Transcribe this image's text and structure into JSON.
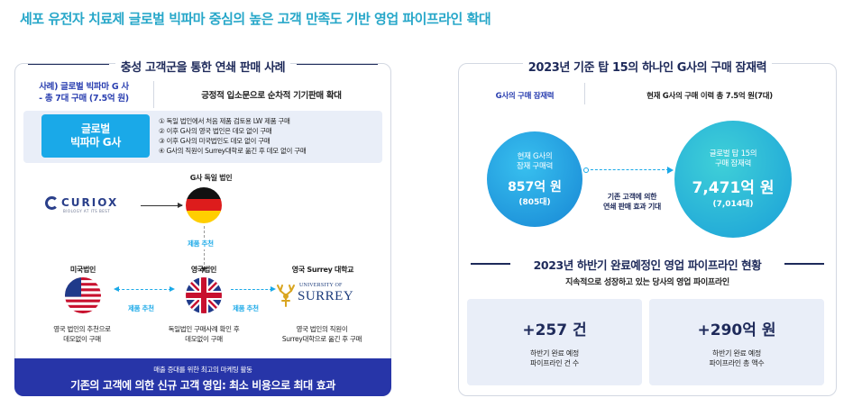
{
  "page_title": "세포 유전자 치료제 글로벌 빅파마 중심의 높은 고객 만족도 기반 영업 파이프라인 확대",
  "left_panel": {
    "heading": "충성 고객군을 통한 연쇄 판매 사례",
    "case_label_line1": "사례) 글로벌 빅파마 G 사",
    "case_label_line2": "- 총 7대 구매 (7.5억 원)",
    "case_desc": "긍정적 입소문으로 순차적 기기판매 확대",
    "badge_line1": "글로벌",
    "badge_line2": "빅파마 G사",
    "case_items": [
      "① 독일 법인에서 처음 제품 검토용 LW 제품 구매",
      "② 이후 G사의 영국 법인은 데모 없이 구매",
      "③ 이후 G사의 미국법인도 데모 없이 구매",
      "④ G사의 직원이 Surrey대학로 옮긴 후 데모 없이 구매"
    ],
    "curiox_name": "CURIOX",
    "curiox_tagline": "BIOLOGY AT ITS BEST",
    "nodes": {
      "germany": "G사 독일 법인",
      "us": "미국법인",
      "uk": "영국법인",
      "surrey": "영국 Surrey 대학교"
    },
    "rec_label": "제품 추천",
    "notes": {
      "us_line1": "영국 법인의 추천으로",
      "us_line2": "데모없이 구매",
      "uk_line1": "독일법인 구매사례 확인 후",
      "uk_line2": "데모없이 구매",
      "surrey_line1": "영국 법인의 직원이",
      "surrey_line2": "Surrey대학으로 옮긴 후 구매"
    },
    "surrey_logo_small": "UNIVERSITY OF",
    "surrey_logo_big": "SURREY",
    "footer_sub": "매출 증대를 위한 최고의 마케팅 활동",
    "footer_main": "기존의 고객에 의한 신규 고객 영입: 최소 비용으로 최대 효과"
  },
  "right_panel": {
    "heading": "2023년 기준 탑 15의 하나인 G사의 구매 잠재력",
    "col_left": "G사의 구매 잠재력",
    "col_right": "현재 G사의 구매 이력 총 7.5억 원(7대)",
    "small_circle": {
      "line1": "현재 G사의",
      "line2": "잠재 구매력",
      "value": "857억 원",
      "sub": "(805대)"
    },
    "big_circle": {
      "line1": "글로벌 탑 15의",
      "line2": "구매 잠재력",
      "value": "7,471억 원",
      "sub": "(7,014대)"
    },
    "arrow_line1": "기존 고객에 의한",
    "arrow_line2": "연쇄 판매 효과 기대",
    "heading2": "2023년 하반기 완료예정인 영업 파이프라인 현황",
    "sub2": "지속적으로 성장하고 있는 당사의 영업 파이프라인",
    "stats": [
      {
        "value": "+257 건",
        "label1": "하반기 완료 예정",
        "label2": "파이프라인 건 수"
      },
      {
        "value": "+290억 원",
        "label1": "하반기 완료 예정",
        "label2": "파이프라인 총 액수"
      }
    ]
  },
  "colors": {
    "title": "#27a7c9",
    "navy": "#1e2a5a",
    "accent_blue": "#1aa9e8",
    "footer": "#2735a8",
    "card_bg": "#e9eef8"
  }
}
